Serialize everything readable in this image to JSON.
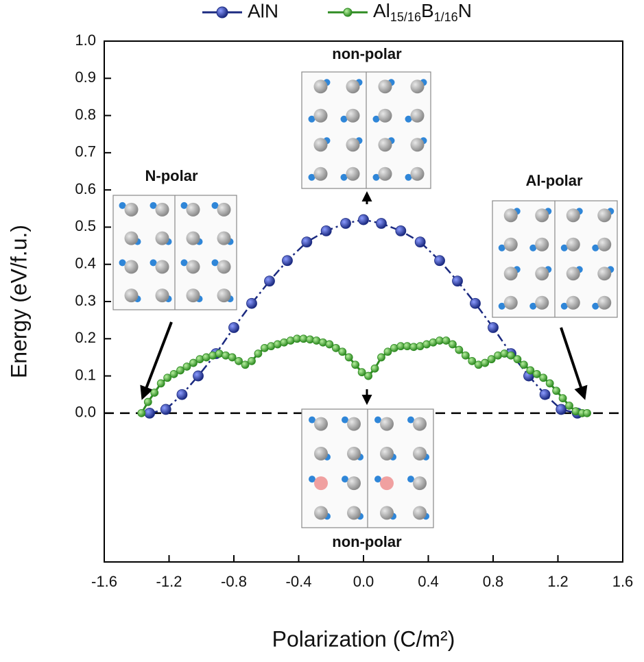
{
  "chart_data": {
    "type": "line",
    "x_label": "Polarization (C/m²)",
    "y_label": "Energy (eV/f.u.)",
    "xlim": [
      -1.6,
      1.6
    ],
    "ylim": [
      -0.4,
      1.0
    ],
    "xticks": [
      -1.6,
      -1.2,
      -0.8,
      -0.4,
      {
        "value": 0,
        "label": "0.0"
      },
      0.4,
      0.8,
      1.2,
      1.6
    ],
    "yticks": [
      {
        "value": 0,
        "label": "0.0"
      },
      0.1,
      0.2,
      0.3,
      0.4,
      0.5,
      0.6,
      0.7,
      0.8,
      0.9,
      {
        "value": 1,
        "label": "1.0"
      }
    ],
    "annotations": [
      "N-polar",
      "non-polar",
      "Al-polar",
      "non-polar"
    ],
    "series": [
      {
        "name": "AlN",
        "color": "#1b2a80",
        "x": [
          -1.32,
          -1.22,
          -1.12,
          -1.02,
          -0.91,
          -0.8,
          -0.69,
          -0.58,
          -0.47,
          -0.35,
          -0.23,
          -0.11,
          0,
          0.11,
          0.23,
          0.35,
          0.47,
          0.58,
          0.69,
          0.8,
          0.91,
          1.02,
          1.12,
          1.22,
          1.32
        ],
        "values": [
          0,
          0.01,
          0.05,
          0.1,
          0.16,
          0.23,
          0.295,
          0.355,
          0.41,
          0.46,
          0.49,
          0.51,
          0.52,
          0.51,
          0.49,
          0.46,
          0.41,
          0.355,
          0.295,
          0.23,
          0.16,
          0.1,
          0.05,
          0.01,
          0
        ]
      },
      {
        "name": "Al15/16B1/16N",
        "color": "#2e8b22",
        "x": [
          -1.37,
          -1.33,
          -1.29,
          -1.25,
          -1.21,
          -1.17,
          -1.13,
          -1.09,
          -1.05,
          -1.01,
          -0.97,
          -0.93,
          -0.89,
          -0.85,
          -0.81,
          -0.77,
          -0.73,
          -0.69,
          -0.65,
          -0.61,
          -0.57,
          -0.53,
          -0.49,
          -0.45,
          -0.41,
          -0.37,
          -0.33,
          -0.29,
          -0.25,
          -0.21,
          -0.17,
          -0.13,
          -0.09,
          -0.05,
          -0.01,
          0.03,
          0.07,
          0.11,
          0.15,
          0.19,
          0.23,
          0.27,
          0.31,
          0.35,
          0.39,
          0.43,
          0.47,
          0.51,
          0.55,
          0.59,
          0.63,
          0.67,
          0.71,
          0.75,
          0.79,
          0.83,
          0.87,
          0.91,
          0.95,
          0.99,
          1.03,
          1.07,
          1.11,
          1.15,
          1.19,
          1.23,
          1.27,
          1.31,
          1.35,
          1.38
        ],
        "values": [
          0,
          0.03,
          0.055,
          0.08,
          0.095,
          0.105,
          0.115,
          0.125,
          0.135,
          0.145,
          0.15,
          0.155,
          0.16,
          0.155,
          0.15,
          0.14,
          0.13,
          0.14,
          0.16,
          0.175,
          0.18,
          0.185,
          0.19,
          0.195,
          0.2,
          0.2,
          0.198,
          0.195,
          0.19,
          0.185,
          0.175,
          0.165,
          0.15,
          0.13,
          0.11,
          0.1,
          0.12,
          0.15,
          0.165,
          0.175,
          0.18,
          0.18,
          0.178,
          0.18,
          0.185,
          0.19,
          0.195,
          0.195,
          0.185,
          0.17,
          0.155,
          0.14,
          0.13,
          0.135,
          0.145,
          0.155,
          0.16,
          0.155,
          0.145,
          0.13,
          0.115,
          0.105,
          0.095,
          0.08,
          0.06,
          0.04,
          0.02,
          0.005,
          0,
          0
        ]
      }
    ]
  }
}
